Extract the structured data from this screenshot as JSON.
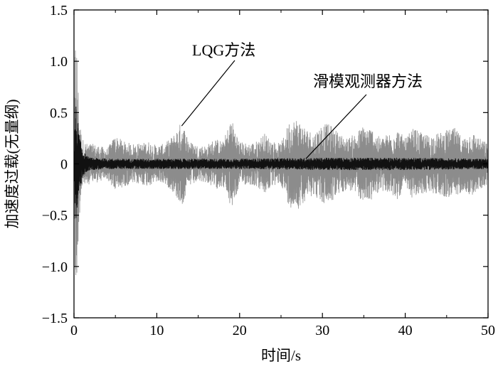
{
  "chart_data": {
    "type": "line",
    "title": "",
    "xlabel": "时间/s",
    "ylabel": "加速度过载(无量纲)",
    "xlim": [
      0,
      50
    ],
    "ylim": [
      -1.5,
      1.5
    ],
    "x_ticks": [
      0,
      10,
      20,
      30,
      40,
      50
    ],
    "x_tick_labels": [
      "0",
      "10",
      "20",
      "30",
      "40",
      "50"
    ],
    "y_ticks": [
      -1.5,
      -1.0,
      -0.5,
      0,
      0.5,
      1.0,
      1.5
    ],
    "y_tick_labels": [
      "−1.5",
      "−1.0",
      "−0.5",
      "0",
      "0.5",
      "1.0",
      "1.5"
    ],
    "grid": false,
    "legend": "none",
    "annotations": [
      {
        "text": "LQG方法",
        "points_to": [
          13,
          0.37
        ]
      },
      {
        "text": "滑模观测器方法",
        "points_to": [
          28,
          0.05
        ]
      }
    ],
    "series": [
      {
        "color": "#8c8c8c",
        "description_points": {
          "x": [
            0,
            0.15,
            0.3,
            0.45,
            0.6,
            0.8,
            1.0,
            1.5,
            2,
            3,
            4,
            5,
            6,
            7,
            8,
            9,
            10,
            11,
            12,
            13,
            14,
            15,
            16,
            17,
            18,
            19,
            20,
            21,
            22,
            23,
            24,
            25,
            26,
            27,
            28,
            29,
            30,
            31,
            32,
            33,
            34,
            35,
            36,
            37,
            38,
            39,
            40,
            41,
            42,
            43,
            44,
            45,
            46,
            47,
            48,
            49,
            50
          ],
          "envelope": [
            0.1,
            1.25,
            1.28,
            0.9,
            0.6,
            0.35,
            0.25,
            0.2,
            0.2,
            0.18,
            0.15,
            0.28,
            0.22,
            0.2,
            0.2,
            0.22,
            0.18,
            0.2,
            0.28,
            0.42,
            0.22,
            0.18,
            0.18,
            0.25,
            0.22,
            0.45,
            0.22,
            0.2,
            0.22,
            0.3,
            0.22,
            0.2,
            0.42,
            0.45,
            0.35,
            0.3,
            0.4,
            0.38,
            0.3,
            0.25,
            0.3,
            0.38,
            0.35,
            0.25,
            0.3,
            0.35,
            0.25,
            0.35,
            0.3,
            0.28,
            0.3,
            0.33,
            0.35,
            0.25,
            0.32,
            0.25,
            0.2
          ]
        }
      },
      {
        "color": "#111111",
        "description_points": {
          "x": [
            0,
            0.2,
            0.4,
            0.6,
            1.0,
            1.5,
            2,
            5,
            10,
            20,
            30,
            40,
            50
          ],
          "envelope": [
            0.05,
            0.6,
            0.45,
            0.3,
            0.15,
            0.08,
            0.06,
            0.05,
            0.05,
            0.05,
            0.06,
            0.06,
            0.05
          ]
        }
      }
    ]
  }
}
